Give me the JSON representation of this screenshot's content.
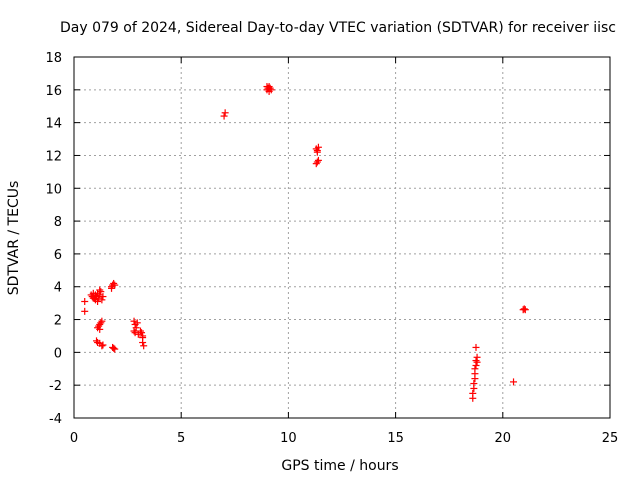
{
  "chart_data": {
    "type": "scatter",
    "title": "Day 079 of 2024, Sidereal Day-to-day VTEC variation (SDTVAR) for receiver iisc",
    "xlabel": "GPS time / hours",
    "ylabel": "SDTVAR / TECUs",
    "xlim": [
      0,
      25
    ],
    "ylim": [
      -4,
      18
    ],
    "xticks": [
      0,
      5,
      10,
      15,
      20,
      25
    ],
    "yticks": [
      -4,
      -2,
      0,
      2,
      4,
      6,
      8,
      10,
      12,
      14,
      16,
      18
    ],
    "grid": true,
    "marker": "+",
    "color": "#ff0000",
    "series": [
      {
        "name": "SDTVAR",
        "points": [
          [
            0.5,
            3.1
          ],
          [
            0.5,
            2.5
          ],
          [
            0.8,
            3.5
          ],
          [
            0.85,
            3.4
          ],
          [
            0.9,
            3.6
          ],
          [
            0.95,
            3.3
          ],
          [
            1.0,
            3.5
          ],
          [
            1.05,
            3.4
          ],
          [
            1.1,
            3.6
          ],
          [
            1.15,
            3.3
          ],
          [
            1.2,
            3.5
          ],
          [
            1.25,
            3.7
          ],
          [
            1.3,
            3.2
          ],
          [
            1.35,
            3.4
          ],
          [
            1.0,
            3.2
          ],
          [
            1.1,
            3.1
          ],
          [
            1.2,
            3.8
          ],
          [
            0.9,
            3.3
          ],
          [
            1.1,
            1.5
          ],
          [
            1.15,
            1.6
          ],
          [
            1.2,
            1.7
          ],
          [
            1.25,
            1.8
          ],
          [
            1.3,
            1.9
          ],
          [
            1.2,
            1.4
          ],
          [
            1.05,
            0.7
          ],
          [
            1.1,
            0.6
          ],
          [
            1.2,
            0.55
          ],
          [
            1.3,
            0.4
          ],
          [
            1.35,
            0.45
          ],
          [
            1.75,
            4.0
          ],
          [
            1.8,
            4.1
          ],
          [
            1.85,
            4.2
          ],
          [
            1.9,
            4.1
          ],
          [
            1.75,
            3.9
          ],
          [
            1.8,
            0.3
          ],
          [
            1.85,
            0.25
          ],
          [
            1.9,
            0.2
          ],
          [
            2.8,
            1.9
          ],
          [
            2.85,
            1.7
          ],
          [
            2.9,
            1.5
          ],
          [
            2.8,
            1.3
          ],
          [
            2.85,
            1.2
          ],
          [
            2.95,
            1.8
          ],
          [
            3.0,
            1.1
          ],
          [
            3.1,
            1.3
          ],
          [
            3.15,
            1.2
          ],
          [
            3.2,
            0.9
          ],
          [
            3.2,
            0.6
          ],
          [
            3.25,
            0.4
          ],
          [
            3.2,
            1.0
          ],
          [
            7.0,
            14.4
          ],
          [
            7.05,
            14.6
          ],
          [
            9.0,
            16.0
          ],
          [
            9.05,
            16.1
          ],
          [
            9.1,
            16.2
          ],
          [
            9.15,
            16.1
          ],
          [
            9.2,
            16.0
          ],
          [
            9.1,
            15.9
          ],
          [
            9.0,
            16.2
          ],
          [
            11.3,
            12.4
          ],
          [
            11.35,
            12.3
          ],
          [
            11.4,
            12.5
          ],
          [
            11.35,
            12.2
          ],
          [
            11.4,
            11.7
          ],
          [
            11.35,
            11.6
          ],
          [
            11.3,
            11.5
          ],
          [
            18.6,
            -2.8
          ],
          [
            18.6,
            -2.5
          ],
          [
            18.65,
            -2.2
          ],
          [
            18.65,
            -1.9
          ],
          [
            18.7,
            -1.6
          ],
          [
            18.7,
            -1.3
          ],
          [
            18.7,
            -1.0
          ],
          [
            18.75,
            -0.8
          ],
          [
            18.8,
            -0.6
          ],
          [
            18.75,
            -0.5
          ],
          [
            18.8,
            -0.3
          ],
          [
            18.75,
            0.3
          ],
          [
            20.5,
            -1.8
          ],
          [
            20.95,
            2.6
          ],
          [
            21.0,
            2.65
          ],
          [
            21.05,
            2.6
          ]
        ]
      }
    ]
  }
}
